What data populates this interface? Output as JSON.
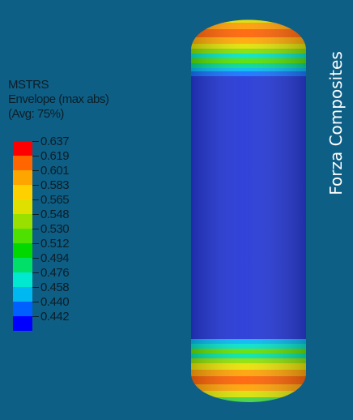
{
  "legend": {
    "title_line1": "MSTRS",
    "title_line2": "Envelope (max abs)",
    "title_line3": "(Avg: 75%)",
    "values": [
      "0.637",
      "0.619",
      "0.601",
      "0.583",
      "0.565",
      "0.548",
      "0.530",
      "0.512",
      "0.494",
      "0.476",
      "0.458",
      "0.440",
      "0.442"
    ],
    "colors": [
      "#ff0000",
      "#ff6600",
      "#ffa500",
      "#ffd000",
      "#e0e000",
      "#99e000",
      "#4ee000",
      "#00d800",
      "#00e068",
      "#00e8d0",
      "#00b8f0",
      "#0060ff",
      "#0000ff"
    ]
  },
  "brand": {
    "text": "Forza Composites"
  },
  "colors": {
    "background": "#0e5f86",
    "vessel_body": "#1f33d6"
  }
}
